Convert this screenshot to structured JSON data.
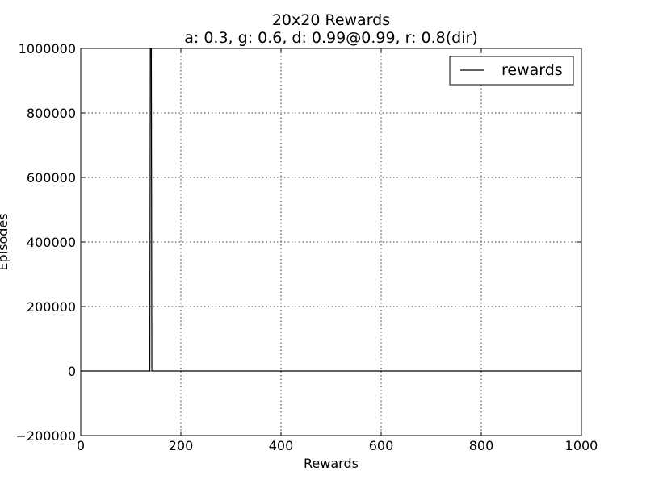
{
  "chart_data": {
    "type": "line",
    "title": "20x20 Rewards",
    "subtitle": "a: 0.3, g: 0.6, d: 0.99@0.99, r: 0.8(dir)",
    "xlabel": "Rewards",
    "ylabel": "Episodes",
    "xlim": [
      0,
      1000
    ],
    "ylim": [
      -200000,
      1000000
    ],
    "xticks": [
      0,
      200,
      400,
      600,
      800,
      1000
    ],
    "xtick_labels": [
      "0",
      "200",
      "400",
      "600",
      "800",
      "1000"
    ],
    "yticks": [
      -200000,
      0,
      200000,
      400000,
      600000,
      800000,
      1000000
    ],
    "ytick_labels": [
      "−200000",
      "0",
      "200000",
      "400000",
      "600000",
      "800000",
      "1000000"
    ],
    "grid": true,
    "legend_position": "top-right",
    "series": [
      {
        "name": "rewards",
        "color": "#000000",
        "x": [
          0,
          100,
          138,
          139,
          140,
          141,
          142,
          143,
          200,
          400,
          600,
          800,
          1000
        ],
        "y": [
          0,
          0,
          0,
          1000000,
          1000000,
          1000000,
          0,
          0,
          0,
          0,
          0,
          0,
          0
        ]
      }
    ]
  }
}
